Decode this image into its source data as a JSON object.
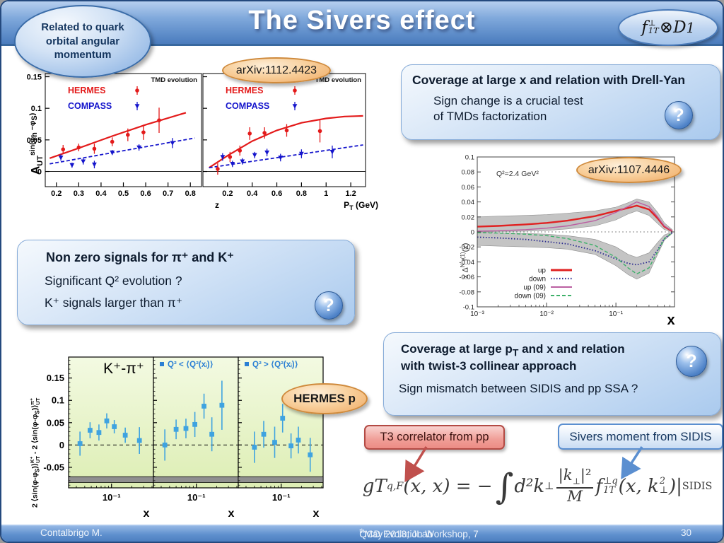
{
  "theme": {
    "frame-border": "#24497e",
    "header_blue": "#5d8cc9",
    "callout_blue": "#aacaee",
    "bubble_orange": "#efa963",
    "red_box": "#ec8c85",
    "navy_text": "#15365f",
    "footer_blue": "#5f90ce",
    "help_sphere_blue": "#4f83c8"
  },
  "header": {
    "title": "The Sivers effect",
    "left_bubble_lines": [
      "Related to quark",
      "orbital angular",
      "momentum"
    ],
    "formula": {
      "base": "f",
      "sup": "⊥",
      "sub": "1T",
      "op": " ⊗ ",
      "base2": "D",
      "sub2": "1"
    }
  },
  "labels": {
    "arxiv1": "arXiv:1112.4423",
    "arxiv2": "arXiv:1107.4446",
    "hermes_p": "HERMES p",
    "t3_box": "T3 correlator from pp",
    "sivers_box": "Sivers moment from SIDIS"
  },
  "callout_drell_yan": {
    "title": "Coverage at large x and relation with Drell-Yan",
    "line1": "Sign change is a crucial test",
    "line2": "of TMDs factorization",
    "help_glyph": "?"
  },
  "callout_signals": {
    "title": "Non zero signals for π⁺ and K⁺",
    "line1": "Significant  Q² evolution ?",
    "line2": "K⁺ signals larger than π⁺",
    "help_glyph": "?"
  },
  "callout_twist3": {
    "title_pre": "Coverage at large p",
    "title_sub": "T",
    "title_post": " and x and relation",
    "title_line2": "with twist-3 collinear approach",
    "line1": "Sign mismatch between SIDIS and pp SSA ?",
    "help_glyph": "?"
  },
  "equation": {
    "lhs": "gT",
    "lhs_sub": "q,F",
    "eq": "(x, x) = −",
    "integral": "∫",
    "meas": "d²k",
    "meas_sub": "⊥",
    "num_pre": "|k",
    "num_sub": "⊥",
    "num_post": "|²",
    "den": "M",
    "f": "f",
    "f_sup": "⊥q",
    "f_sub": "1T",
    "arg_pre": "(x, k",
    "k_sup": "2",
    "k_sub": "⊥",
    "arg_post": ")|",
    "limit": "SIDIS"
  },
  "footer": {
    "author": "Contalbrigo M.",
    "venue_pre": "QCD Evolution Workshop, 7",
    "venue_sup": "th",
    "venue_post": " May 2013, JLab",
    "page": "30"
  },
  "chart_data": [
    {
      "id": "tmd-evolution-asymmetry",
      "type": "scatter",
      "corner_label": "TMD evolution",
      "ylabel": {
        "base": "A",
        "sub": "UT",
        "sup_pre": "sin(φ",
        "sup_sub1": "h",
        "sup_mid": " −φ",
        "sup_sub2": "S",
        "sup_post": ")"
      },
      "ylim": [
        -0.024,
        0.155
      ],
      "yticks": [
        0,
        0.05,
        0.1,
        0.15
      ],
      "ytick_labels": [
        "0",
        "0.05",
        "0.1",
        "0.15"
      ],
      "series": [
        {
          "name": "HERMES",
          "color": "#e31a1a",
          "marker": "circle"
        },
        {
          "name": "COMPASS",
          "color": "#1515cc",
          "marker": "triangle"
        }
      ],
      "panels": [
        {
          "xlabel": {
            "pre": "z",
            "sub": "",
            "post": ""
          },
          "xlim": [
            0.15,
            0.85
          ],
          "xticks": [
            0.2,
            0.3,
            0.4,
            0.5,
            0.6,
            0.7,
            0.8
          ],
          "hermes": {
            "x": [
              0.23,
              0.3,
              0.37,
              0.45,
              0.52,
              0.59,
              0.66
            ],
            "y": [
              0.035,
              0.038,
              0.036,
              0.047,
              0.058,
              0.062,
              0.081
            ],
            "ey": [
              0.007,
              0.006,
              0.008,
              0.007,
              0.01,
              0.012,
              0.02
            ]
          },
          "compass": {
            "x": [
              0.22,
              0.27,
              0.32,
              0.37,
              0.45,
              0.57,
              0.72
            ],
            "y": [
              0.022,
              0.01,
              0.016,
              0.011,
              0.03,
              0.038,
              0.045
            ],
            "ey": [
              0.005,
              0.004,
              0.005,
              0.006,
              0.004,
              0.005,
              0.008
            ]
          },
          "hermes_fit": {
            "x": [
              0.17,
              0.3,
              0.45,
              0.6,
              0.78
            ],
            "y": [
              0.021,
              0.037,
              0.056,
              0.074,
              0.093
            ]
          },
          "compass_fit": {
            "x": [
              0.17,
              0.82
            ],
            "y": [
              0.012,
              0.053
            ]
          }
        },
        {
          "xlabel": {
            "pre": "P",
            "sub": "T",
            "post": " (GeV)"
          },
          "xlim": [
            0,
            1.32
          ],
          "xticks": [
            0.2,
            0.4,
            0.6,
            0.8,
            1,
            1.2
          ],
          "hermes": {
            "x": [
              0.12,
              0.22,
              0.3,
              0.38,
              0.5,
              0.68,
              0.95
            ],
            "y": [
              0.004,
              0.023,
              0.033,
              0.06,
              0.061,
              0.065,
              0.064
            ],
            "ey": [
              0.009,
              0.008,
              0.008,
              0.01,
              0.009,
              0.01,
              0.018
            ]
          },
          "compass": {
            "x": [
              0.16,
              0.24,
              0.32,
              0.42,
              0.52,
              0.63,
              0.8,
              1.05
            ],
            "y": [
              0.023,
              0.012,
              0.016,
              0.026,
              0.03,
              0.022,
              0.028,
              0.031
            ],
            "ey": [
              0.006,
              0.005,
              0.005,
              0.005,
              0.006,
              0.006,
              0.007,
              0.01
            ]
          },
          "hermes_fit": {
            "x": [
              0.05,
              0.2,
              0.4,
              0.6,
              0.8,
              1,
              1.15,
              1.3
            ],
            "y": [
              0.006,
              0.025,
              0.048,
              0.065,
              0.077,
              0.084,
              0.087,
              0.088
            ]
          },
          "compass_fit": {
            "x": [
              0.05,
              1.3
            ],
            "y": [
              0.006,
              0.042
            ]
          }
        }
      ]
    },
    {
      "id": "sivers-first-moment-fit",
      "type": "line",
      "annotation": "Q²=2.4 GeV²",
      "ylabel": {
        "p1": "x Δ",
        "s1": "N",
        "p2": " f",
        "s2": "(1)",
        "p3": "(x)"
      },
      "xlabel": "x",
      "xscale": "log",
      "xlim": [
        0.001,
        0.7
      ],
      "ylim": [
        -0.1,
        0.1
      ],
      "yticks": [
        0.1,
        0.08,
        0.06,
        0.04,
        0.02,
        0,
        -0.02,
        -0.04,
        -0.06,
        -0.08,
        -0.1
      ],
      "ytick_labels": [
        "0.1",
        "0.08",
        "0.06",
        "0.04",
        "0.02",
        "0",
        "-0.02",
        "-0.04",
        "-0.06",
        "-0.08",
        "-0.1"
      ],
      "xtick_values": [
        0.001,
        0.01,
        0.1
      ],
      "xtick_labels": [
        "10⁻³",
        "10⁻²",
        "10⁻¹"
      ],
      "x": [
        0.001,
        0.002,
        0.005,
        0.01,
        0.02,
        0.05,
        0.1,
        0.15,
        0.2,
        0.3,
        0.4,
        0.5,
        0.65
      ],
      "series": [
        {
          "name": "up",
          "color": "#e02222",
          "style": "solid",
          "width": 2.4,
          "y": [
            0.007,
            0.008,
            0.01,
            0.012,
            0.015,
            0.021,
            0.028,
            0.032,
            0.035,
            0.03,
            0.018,
            0.007,
            0.001
          ]
        },
        {
          "name": "down",
          "color": "#28288e",
          "style": "dotted",
          "width": 1.8,
          "y": [
            -0.007,
            -0.008,
            -0.01,
            -0.013,
            -0.016,
            -0.025,
            -0.036,
            -0.042,
            -0.044,
            -0.04,
            -0.024,
            -0.009,
            -0.001
          ]
        },
        {
          "name": "up (09)",
          "color": "#bb5fa2",
          "style": "solid",
          "width": 1.4,
          "y": [
            0.001,
            0.0015,
            0.003,
            0.005,
            0.008,
            0.015,
            0.026,
            0.034,
            0.04,
            0.034,
            0.02,
            0.008,
            0.001
          ]
        },
        {
          "name": "down (09)",
          "color": "#3db069",
          "style": "dashed",
          "width": 1.4,
          "y": [
            -0.001,
            -0.0015,
            -0.003,
            -0.005,
            -0.009,
            -0.018,
            -0.034,
            -0.048,
            -0.056,
            -0.048,
            -0.026,
            -0.009,
            -0.001
          ]
        }
      ],
      "bands": [
        {
          "upper": [
            0.02,
            0.021,
            0.022,
            0.023,
            0.025,
            0.028,
            0.033,
            0.039,
            0.044,
            0.04,
            0.026,
            0.012,
            0.003
          ],
          "lower": [
            0,
            0.0005,
            0.001,
            0.002,
            0.004,
            0.008,
            0.016,
            0.024,
            0.028,
            0.022,
            0.011,
            0.003,
            0
          ]
        },
        {
          "upper": [
            0,
            -0.001,
            -0.002,
            -0.003,
            -0.005,
            -0.01,
            -0.02,
            -0.03,
            -0.034,
            -0.028,
            -0.014,
            -0.004,
            0
          ],
          "lower": [
            -0.018,
            -0.019,
            -0.02,
            -0.021,
            -0.023,
            -0.03,
            -0.045,
            -0.057,
            -0.063,
            -0.055,
            -0.03,
            -0.011,
            -0.002
          ]
        }
      ]
    },
    {
      "id": "kaon-pion-sivers-difference",
      "type": "scatter",
      "marker_color": "#3fa3e0",
      "panel_labels": [
        "K⁺-π⁺",
        "Q² < ⟨Q²(xᵢ)⟩",
        "Q² > ⟨Q²(xᵢ)⟩"
      ],
      "ylabel": {
        "seg1": "2 ⟨sin(φ-φ",
        "sub1": "S",
        "seg2": ")⟩",
        "sup1": "K⁺",
        "subsc1": "UT",
        "seg3": " - 2 ⟨sin(φ-φ",
        "sub2": "S",
        "seg4": ")⟩",
        "sup2": "π⁺",
        "subsc2": "UT"
      },
      "xlabel": "x",
      "xscale": "log",
      "xlim": [
        0.023,
        0.42
      ],
      "ylim": [
        -0.096,
        0.197
      ],
      "yticks": [
        -0.05,
        0,
        0.05,
        0.1,
        0.15
      ],
      "ytick_labels": [
        "-0.05",
        "0",
        "0.05",
        "0.1",
        "0.15"
      ],
      "xtick_label": "10⁻¹",
      "band": [
        -0.071,
        -0.084
      ],
      "panels": [
        {
          "x": [
            0.034,
            0.048,
            0.065,
            0.085,
            0.11,
            0.16,
            0.26
          ],
          "y": [
            0.003,
            0.033,
            0.028,
            0.054,
            0.041,
            0.022,
            0.01
          ],
          "ey": [
            0.027,
            0.018,
            0.018,
            0.017,
            0.015,
            0.017,
            0.03
          ]
        },
        {
          "x": [
            0.034,
            0.05,
            0.07,
            0.095,
            0.13,
            0.17,
            0.24
          ],
          "y": [
            0,
            0.035,
            0.037,
            0.046,
            0.087,
            0.024,
            0.089
          ],
          "ey": [
            0.035,
            0.022,
            0.022,
            0.028,
            0.028,
            0.038,
            0.055
          ]
        },
        {
          "x": [
            0.04,
            0.055,
            0.08,
            0.105,
            0.14,
            0.18,
            0.27
          ],
          "y": [
            -0.005,
            0.024,
            0.006,
            0.06,
            -0.002,
            0.011,
            -0.022
          ],
          "ey": [
            0.035,
            0.03,
            0.035,
            0.032,
            0.028,
            0.03,
            0.038
          ]
        }
      ]
    }
  ]
}
